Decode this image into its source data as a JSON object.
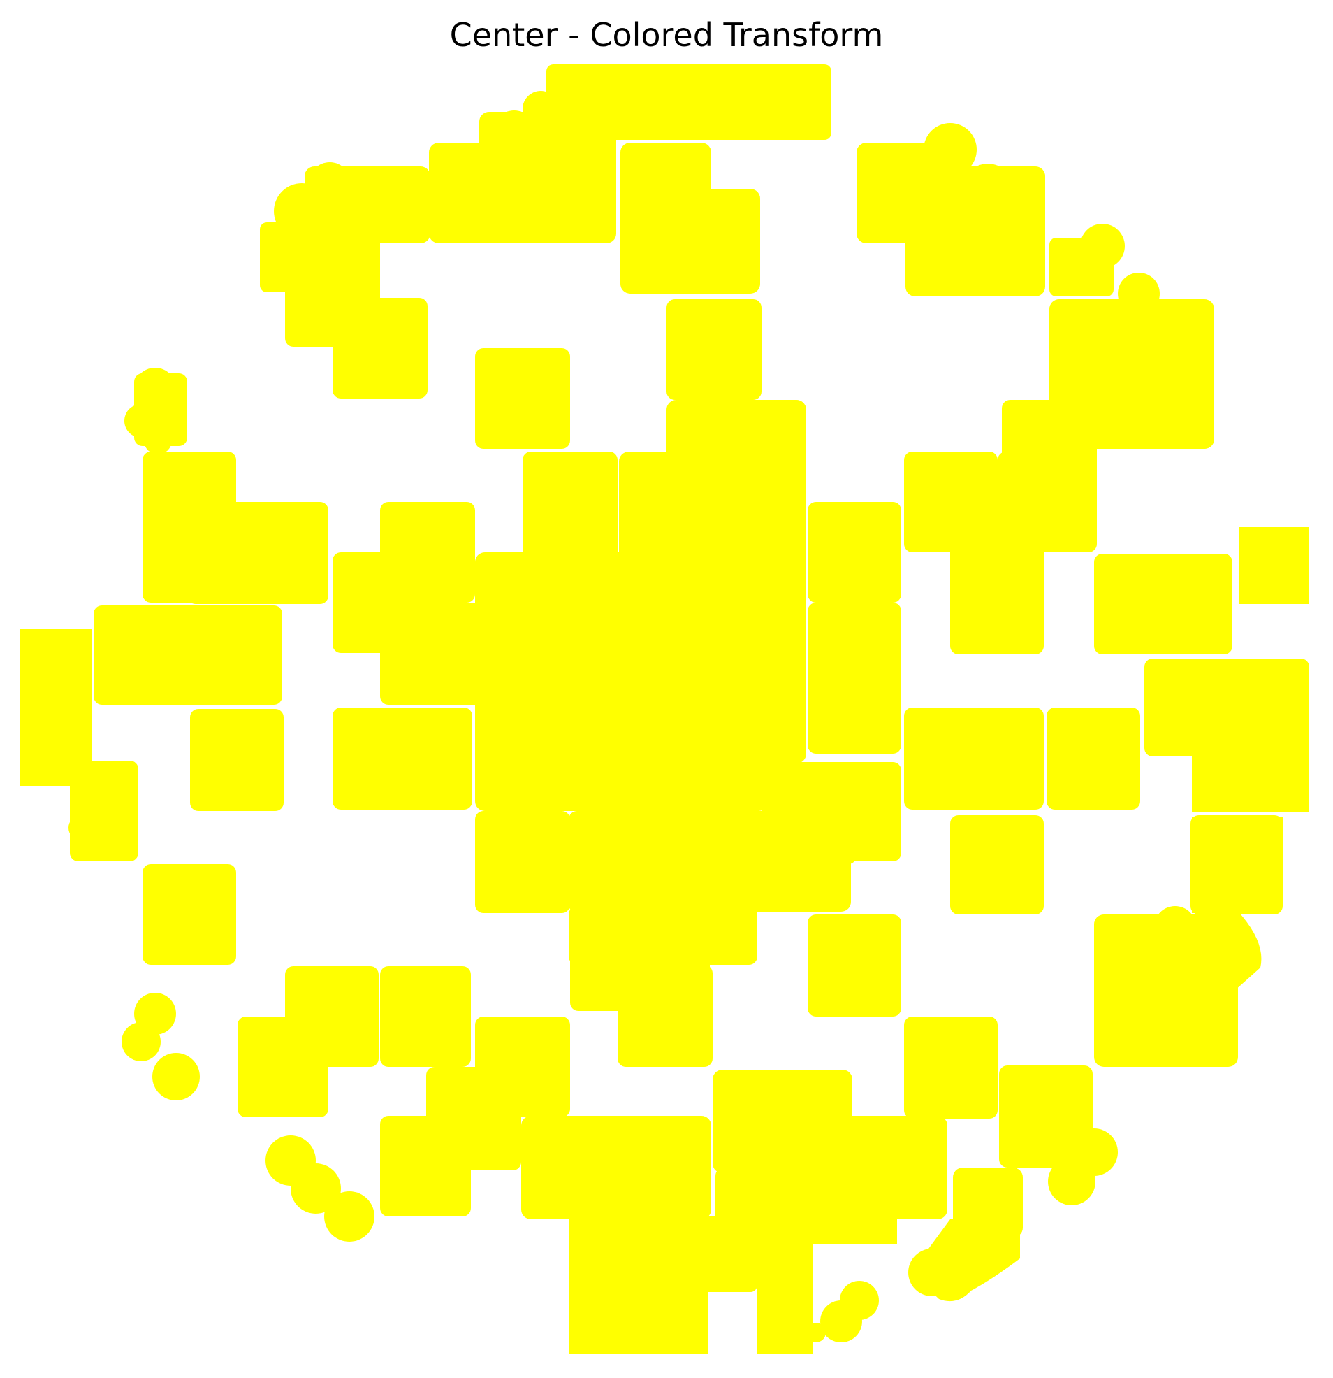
{
  "title": "Center - Colored Transform",
  "colors": {
    "background": "#ffffff",
    "fill": "#ffff00",
    "title_text": "#000000"
  }
}
